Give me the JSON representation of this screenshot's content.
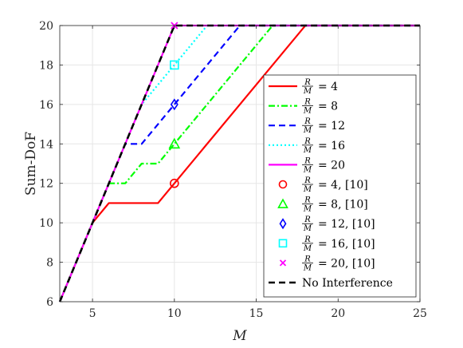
{
  "chart_data": {
    "type": "line",
    "xlabel": "M",
    "ylabel": "Sum-DoF",
    "xlim": [
      3,
      25
    ],
    "ylim": [
      6,
      20
    ],
    "xticks": [
      5,
      10,
      15,
      20,
      25
    ],
    "yticks": [
      6,
      8,
      10,
      12,
      14,
      16,
      18,
      20
    ],
    "xtick_labels": [
      "5",
      "10",
      "15",
      "20",
      "25"
    ],
    "ytick_labels": [
      "6",
      "8",
      "10",
      "12",
      "14",
      "16",
      "18",
      "20"
    ],
    "grid": true,
    "legend_position": "bottom-right",
    "series": [
      {
        "legend_frac": [
          "R",
          "M"
        ],
        "legend_suffix": "= 4",
        "color": "#ff0000",
        "dash": "solid",
        "points": [
          [
            3,
            6
          ],
          [
            5,
            10
          ],
          [
            6,
            11
          ],
          [
            9,
            11
          ],
          [
            18,
            20
          ],
          [
            25,
            20
          ]
        ]
      },
      {
        "legend_frac": [
          "R",
          "M"
        ],
        "legend_suffix": "= 8",
        "color": "#00ff00",
        "dash": "dashdot",
        "points": [
          [
            3,
            6
          ],
          [
            6,
            12
          ],
          [
            7,
            12
          ],
          [
            8,
            13
          ],
          [
            9,
            13
          ],
          [
            16,
            20
          ],
          [
            25,
            20
          ]
        ]
      },
      {
        "legend_frac": [
          "R",
          "M"
        ],
        "legend_suffix": "= 12",
        "color": "#0000ff",
        "dash": "dashed",
        "points": [
          [
            3,
            6
          ],
          [
            7,
            14
          ],
          [
            8,
            14
          ],
          [
            14,
            20
          ],
          [
            25,
            20
          ]
        ]
      },
      {
        "legend_frac": [
          "R",
          "M"
        ],
        "legend_suffix": "= 16",
        "color": "#00ffff",
        "dash": "dotted",
        "points": [
          [
            3,
            6
          ],
          [
            8,
            16
          ],
          [
            12,
            20
          ],
          [
            25,
            20
          ]
        ]
      },
      {
        "legend_frac": [
          "R",
          "M"
        ],
        "legend_suffix": "= 20",
        "color": "#ff00ff",
        "dash": "solid",
        "points": [
          [
            3,
            6
          ],
          [
            10,
            20
          ],
          [
            25,
            20
          ]
        ]
      }
    ],
    "markers": [
      {
        "legend_frac": [
          "R",
          "M"
        ],
        "legend_suffix": "= 4, [10]",
        "color": "#ff0000",
        "shape": "circle",
        "point": [
          10,
          12
        ]
      },
      {
        "legend_frac": [
          "R",
          "M"
        ],
        "legend_suffix": "= 8, [10]",
        "color": "#00ff00",
        "shape": "triangle",
        "point": [
          10,
          14
        ]
      },
      {
        "legend_frac": [
          "R",
          "M"
        ],
        "legend_suffix": "= 12, [10]",
        "color": "#0000ff",
        "shape": "diamond",
        "point": [
          10,
          16
        ]
      },
      {
        "legend_frac": [
          "R",
          "M"
        ],
        "legend_suffix": "= 16, [10]",
        "color": "#00ffff",
        "shape": "square",
        "point": [
          10,
          18
        ]
      },
      {
        "legend_frac": [
          "R",
          "M"
        ],
        "legend_suffix": "= 20, [10]",
        "color": "#ff00ff",
        "shape": "x",
        "point": [
          10,
          20
        ]
      }
    ],
    "reference": {
      "legend_label": "No Interference",
      "color": "#000000",
      "dash": "dashed",
      "points": [
        [
          3,
          6
        ],
        [
          10,
          20
        ],
        [
          25,
          20
        ]
      ]
    }
  }
}
